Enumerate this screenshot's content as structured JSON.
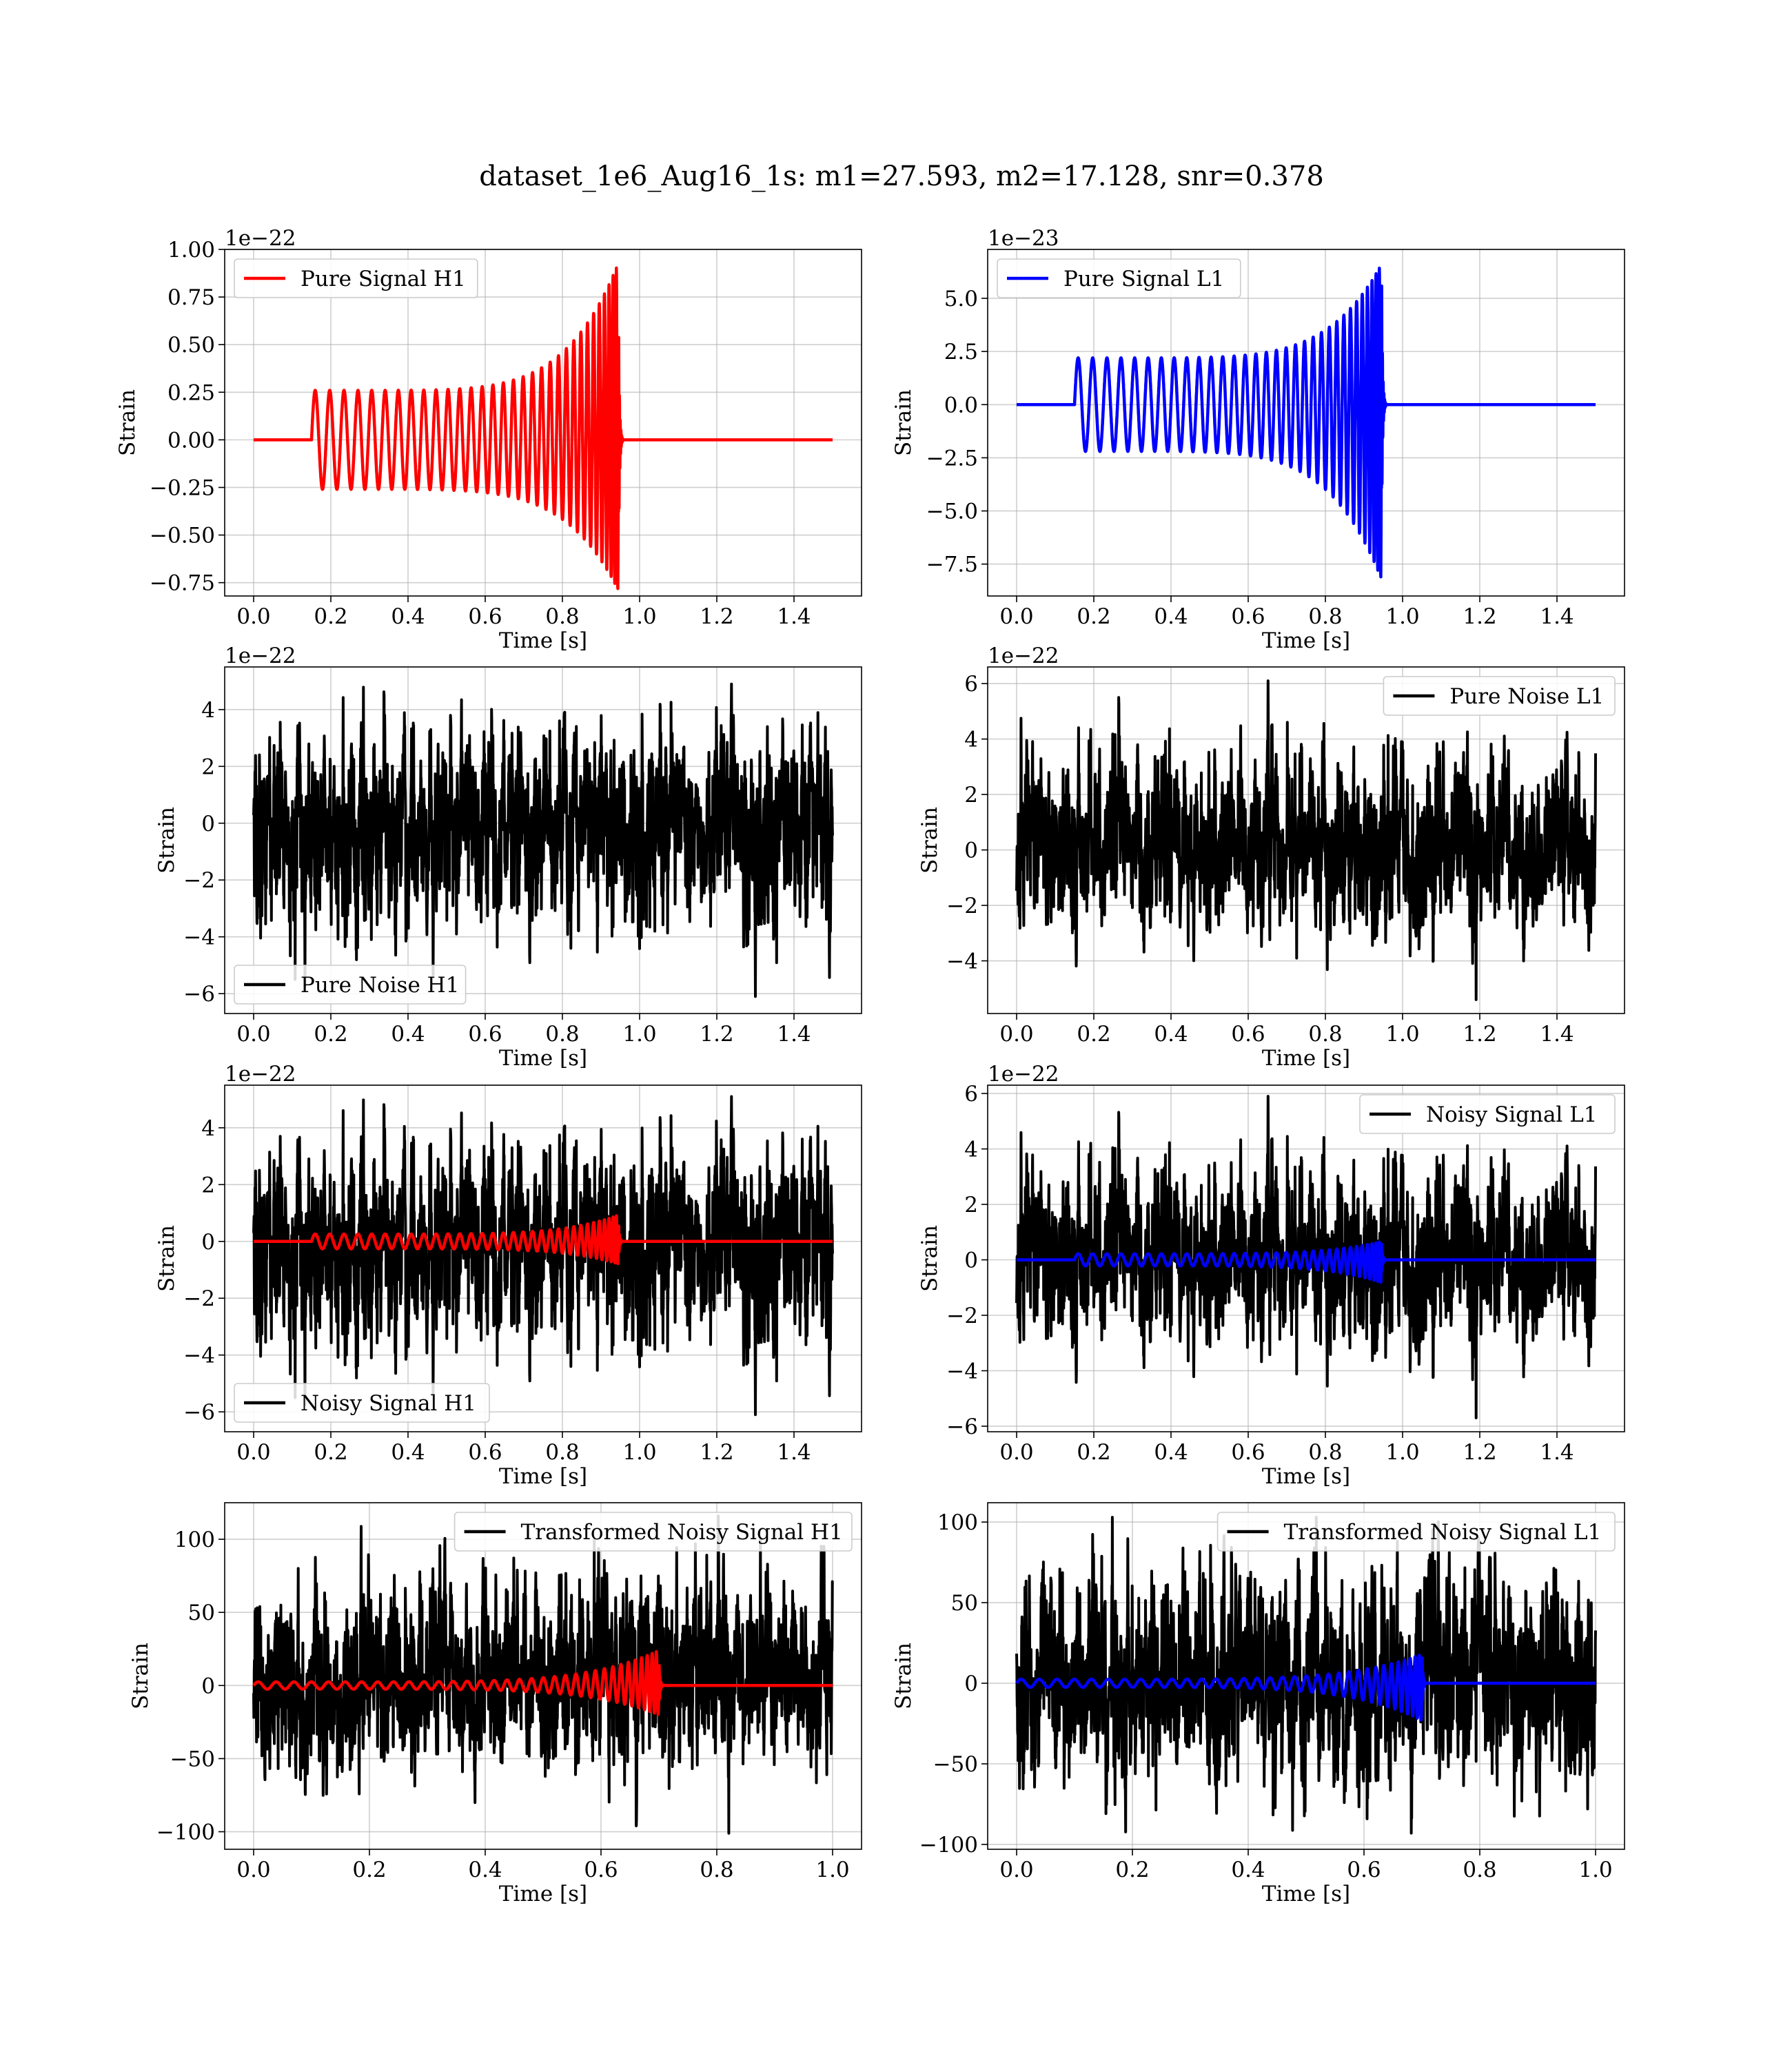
{
  "figure_title": "dataset_1e6_Aug16_1s: m1=27.593, m2=17.128, snr=0.378",
  "chart_data": [
    {
      "type": "line",
      "id": "pure-signal-h1",
      "xlabel": "Time [s]",
      "ylabel": "Strain",
      "offset_label": "1e−22",
      "xlim": [
        -0.075,
        1.575
      ],
      "ylim": [
        -0.82,
        1.0
      ],
      "xticks": [
        0.0,
        0.2,
        0.4,
        0.6,
        0.8,
        1.0,
        1.2,
        1.4
      ],
      "xtick_labels": [
        "0.0",
        "0.2",
        "0.4",
        "0.6",
        "0.8",
        "1.0",
        "1.2",
        "1.4"
      ],
      "yticks": [
        -0.75,
        -0.5,
        -0.25,
        0.0,
        0.25,
        0.5,
        0.75,
        1.0
      ],
      "ytick_labels": [
        "−0.75",
        "−0.50",
        "−0.25",
        "0.00",
        "0.25",
        "0.50",
        "0.75",
        "1.00"
      ],
      "legend_position": "upper-left",
      "grid": true,
      "series": [
        {
          "name": "Pure Signal H1",
          "color": "#ff0000",
          "kind": "chirp",
          "duration": 1.5,
          "t_start": 0.15,
          "t_merge": 0.945,
          "amp_start": 0.26,
          "amp_peak": 0.93,
          "amp_trough": -0.79,
          "cycles": 32,
          "ringdown": 0.012
        }
      ]
    },
    {
      "type": "line",
      "id": "pure-signal-l1",
      "xlabel": "Time [s]",
      "ylabel": "Strain",
      "offset_label": "1e−23",
      "xlim": [
        -0.075,
        1.575
      ],
      "ylim": [
        -9.0,
        7.3
      ],
      "xticks": [
        0.0,
        0.2,
        0.4,
        0.6,
        0.8,
        1.0,
        1.2,
        1.4
      ],
      "xtick_labels": [
        "0.0",
        "0.2",
        "0.4",
        "0.6",
        "0.8",
        "1.0",
        "1.2",
        "1.4"
      ],
      "yticks": [
        -7.5,
        -5.0,
        -2.5,
        0.0,
        2.5,
        5.0
      ],
      "ytick_labels": [
        "−7.5",
        "−5.0",
        "−2.5",
        "0.0",
        "2.5",
        "5.0"
      ],
      "legend_position": "upper-left",
      "grid": true,
      "series": [
        {
          "name": "Pure Signal L1",
          "color": "#0000ff",
          "kind": "chirp",
          "duration": 1.5,
          "t_start": 0.15,
          "t_merge": 0.945,
          "amp_start": 2.2,
          "amp_peak": 6.6,
          "amp_trough": -8.2,
          "cycles": 32,
          "ringdown": 0.012
        }
      ]
    },
    {
      "type": "line",
      "id": "pure-noise-h1",
      "xlabel": "Time [s]",
      "ylabel": "Strain",
      "offset_label": "1e−22",
      "xlim": [
        -0.075,
        1.575
      ],
      "ylim": [
        -6.7,
        5.5
      ],
      "xticks": [
        0.0,
        0.2,
        0.4,
        0.6,
        0.8,
        1.0,
        1.2,
        1.4
      ],
      "xtick_labels": [
        "0.0",
        "0.2",
        "0.4",
        "0.6",
        "0.8",
        "1.0",
        "1.2",
        "1.4"
      ],
      "yticks": [
        -6,
        -4,
        -2,
        0,
        2,
        4
      ],
      "ytick_labels": [
        "−6",
        "−4",
        "−2",
        "0",
        "2",
        "4"
      ],
      "legend_position": "lower-left",
      "grid": true,
      "series": [
        {
          "name": "Pure Noise H1",
          "color": "#000000",
          "kind": "noise",
          "duration": 1.5,
          "min": -6.1,
          "max": 4.9,
          "sigma": 1.45,
          "seed": 11
        }
      ]
    },
    {
      "type": "line",
      "id": "pure-noise-l1",
      "xlabel": "Time [s]",
      "ylabel": "Strain",
      "offset_label": "1e−22",
      "xlim": [
        -0.075,
        1.575
      ],
      "ylim": [
        -5.9,
        6.6
      ],
      "xticks": [
        0.0,
        0.2,
        0.4,
        0.6,
        0.8,
        1.0,
        1.2,
        1.4
      ],
      "xtick_labels": [
        "0.0",
        "0.2",
        "0.4",
        "0.6",
        "0.8",
        "1.0",
        "1.2",
        "1.4"
      ],
      "yticks": [
        -4,
        -2,
        0,
        2,
        4,
        6
      ],
      "ytick_labels": [
        "−4",
        "−2",
        "0",
        "2",
        "4",
        "6"
      ],
      "legend_position": "upper-right",
      "grid": true,
      "series": [
        {
          "name": "Pure Noise L1",
          "color": "#000000",
          "kind": "noise",
          "duration": 1.5,
          "min": -5.4,
          "max": 6.1,
          "sigma": 1.45,
          "seed": 23
        }
      ]
    },
    {
      "type": "line",
      "id": "noisy-signal-h1",
      "xlabel": "Time [s]",
      "ylabel": "Strain",
      "offset_label": "1e−22",
      "xlim": [
        -0.075,
        1.575
      ],
      "ylim": [
        -6.7,
        5.5
      ],
      "xticks": [
        0.0,
        0.2,
        0.4,
        0.6,
        0.8,
        1.0,
        1.2,
        1.4
      ],
      "xtick_labels": [
        "0.0",
        "0.2",
        "0.4",
        "0.6",
        "0.8",
        "1.0",
        "1.2",
        "1.4"
      ],
      "yticks": [
        -6,
        -4,
        -2,
        0,
        2,
        4
      ],
      "ytick_labels": [
        "−6",
        "−4",
        "−2",
        "0",
        "2",
        "4"
      ],
      "legend_position": "lower-left",
      "grid": true,
      "series": [
        {
          "name": "Noisy Signal H1",
          "color": "#000000",
          "kind": "noise",
          "duration": 1.5,
          "min": -6.1,
          "max": 5.1,
          "sigma": 1.45,
          "seed": 11
        },
        {
          "name": "",
          "color": "#ff0000",
          "kind": "chirp",
          "duration": 1.5,
          "t_start": 0.15,
          "t_merge": 0.945,
          "amp_start": 0.26,
          "amp_peak": 0.93,
          "amp_trough": -0.79,
          "cycles": 32,
          "ringdown": 0.012
        }
      ]
    },
    {
      "type": "line",
      "id": "noisy-signal-l1",
      "xlabel": "Time [s]",
      "ylabel": "Strain",
      "offset_label": "1e−22",
      "xlim": [
        -0.075,
        1.575
      ],
      "ylim": [
        -6.2,
        6.3
      ],
      "xticks": [
        0.0,
        0.2,
        0.4,
        0.6,
        0.8,
        1.0,
        1.2,
        1.4
      ],
      "xtick_labels": [
        "0.0",
        "0.2",
        "0.4",
        "0.6",
        "0.8",
        "1.0",
        "1.2",
        "1.4"
      ],
      "yticks": [
        -6,
        -4,
        -2,
        0,
        2,
        4,
        6
      ],
      "ytick_labels": [
        "−6",
        "−4",
        "−2",
        "0",
        "2",
        "4",
        "6"
      ],
      "legend_position": "upper-right",
      "grid": true,
      "series": [
        {
          "name": "Noisy Signal L1",
          "color": "#000000",
          "kind": "noise",
          "duration": 1.5,
          "min": -5.7,
          "max": 5.9,
          "sigma": 1.45,
          "seed": 23
        },
        {
          "name": "",
          "color": "#0000ff",
          "kind": "chirp",
          "duration": 1.5,
          "t_start": 0.15,
          "t_merge": 0.945,
          "amp_start": 0.22,
          "amp_peak": 0.66,
          "amp_trough": -0.82,
          "cycles": 32,
          "ringdown": 0.012
        }
      ]
    },
    {
      "type": "line",
      "id": "transformed-noisy-signal-h1",
      "xlabel": "Time [s]",
      "ylabel": "Strain",
      "offset_label": "",
      "xlim": [
        -0.05,
        1.05
      ],
      "ylim": [
        -112,
        125
      ],
      "xticks": [
        0.0,
        0.2,
        0.4,
        0.6,
        0.8,
        1.0
      ],
      "xtick_labels": [
        "0.0",
        "0.2",
        "0.4",
        "0.6",
        "0.8",
        "1.0"
      ],
      "yticks": [
        -100,
        -50,
        0,
        50,
        100
      ],
      "ytick_labels": [
        "−100",
        "−50",
        "0",
        "50",
        "100"
      ],
      "legend_position": "upper-right",
      "grid": true,
      "series": [
        {
          "name": "Transformed Noisy Signal H1",
          "color": "#000000",
          "kind": "noise",
          "duration": 1.0,
          "min": -101,
          "max": 116,
          "sigma": 30,
          "seed": 37
        },
        {
          "name": "",
          "color": "#ff0000",
          "kind": "chirp",
          "duration": 1.0,
          "t_start": 0.0,
          "t_merge": 0.7,
          "amp_start": 2.5,
          "amp_peak": 24,
          "amp_trough": -20,
          "cycles": 34,
          "ringdown": 0.008
        }
      ]
    },
    {
      "type": "line",
      "id": "transformed-noisy-signal-l1",
      "xlabel": "Time [s]",
      "ylabel": "Strain",
      "offset_label": "",
      "xlim": [
        -0.05,
        1.05
      ],
      "ylim": [
        -103,
        112
      ],
      "xticks": [
        0.0,
        0.2,
        0.4,
        0.6,
        0.8,
        1.0
      ],
      "xtick_labels": [
        "0.0",
        "0.2",
        "0.4",
        "0.6",
        "0.8",
        "1.0"
      ],
      "yticks": [
        -100,
        -50,
        0,
        50,
        100
      ],
      "ytick_labels": [
        "−100",
        "−50",
        "0",
        "50",
        "100"
      ],
      "legend_position": "upper-right",
      "grid": true,
      "series": [
        {
          "name": "Transformed Noisy Signal L1",
          "color": "#000000",
          "kind": "noise",
          "duration": 1.0,
          "min": -93,
          "max": 103,
          "sigma": 28,
          "seed": 53
        },
        {
          "name": "",
          "color": "#0000ff",
          "kind": "chirp",
          "duration": 1.0,
          "t_start": 0.0,
          "t_merge": 0.7,
          "amp_start": 2.5,
          "amp_peak": 18,
          "amp_trough": -23,
          "cycles": 34,
          "ringdown": 0.008
        }
      ]
    }
  ]
}
